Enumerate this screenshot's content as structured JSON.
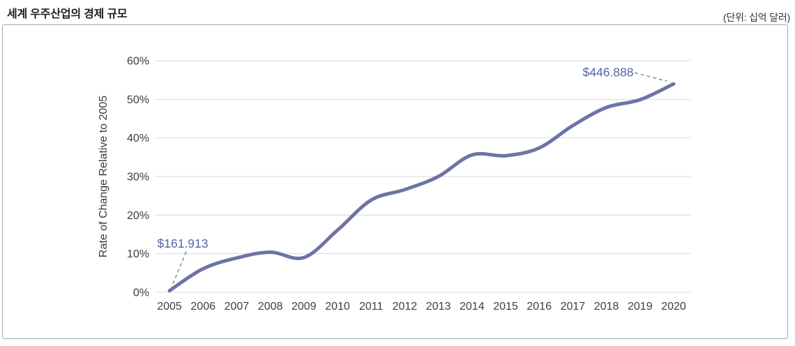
{
  "header": {
    "title": "세계 우주산업의 경제 규모",
    "unit_label": "(단위: 십억 달러)"
  },
  "chart_data": {
    "type": "line",
    "title": "세계 우주산업의 경제 규모",
    "unit_note": "(단위: 십억 달러)",
    "xlabel": "",
    "ylabel": "Rate of Change Relative to 2005",
    "categories": [
      "2005",
      "2006",
      "2007",
      "2008",
      "2009",
      "2010",
      "2011",
      "2012",
      "2013",
      "2014",
      "2015",
      "2016",
      "2017",
      "2018",
      "2019",
      "2020"
    ],
    "values": [
      0.4,
      6.1,
      8.9,
      10.4,
      9.0,
      16.1,
      23.9,
      26.6,
      30.0,
      35.6,
      35.4,
      37.4,
      43.2,
      47.9,
      49.9,
      54.0
    ],
    "ylim": [
      0,
      60
    ],
    "y_tick_step": 10,
    "y_tick_labels": [
      "0%",
      "10%",
      "20%",
      "30%",
      "40%",
      "50%",
      "60%"
    ],
    "grid": "horizontal",
    "legend_position": "none",
    "annotations": [
      {
        "x": "2005",
        "label": "$161.913"
      },
      {
        "x": "2020",
        "label": "$446.888"
      }
    ],
    "colors": {
      "line": "#6c74a6",
      "annotation_text": "#5763a3",
      "gridline": "#d9d9d9",
      "axis_text": "#3d3d44",
      "dashed_pointer": "#8a8a8a",
      "panel_border": "#a7a7a7"
    }
  }
}
